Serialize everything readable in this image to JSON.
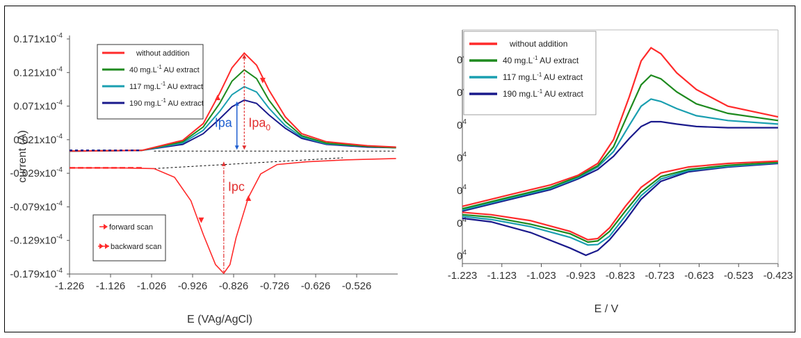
{
  "colors": {
    "without": "#ff2a2a",
    "au40": "#1e8a1e",
    "au117": "#1a9fb0",
    "au190": "#1a1a8c",
    "annot_red": "#e23030",
    "annot_blue": "#1f5fd0"
  },
  "chart_data": [
    {
      "type": "line",
      "ylabel": "current (A)",
      "xlabel": "E  (VAg/AgCl)",
      "xticks": [
        "-1.226",
        "-1.126",
        "-1.026",
        "-0.926",
        "-0.826",
        "-0.726",
        "-0.626",
        "-0.526"
      ],
      "yticks": [
        "0.171x10",
        "0.121x10",
        "0.071x10",
        "0.021x10",
        "-0.029x10",
        "-0.079x10",
        "-0.129x10",
        "-0.179x10"
      ],
      "ytick_exp": "-4",
      "xlim": [
        -1.226,
        -0.426
      ],
      "ylim": [
        -0.179,
        0.171
      ],
      "grid": false,
      "legend_position": "top-left",
      "series": [
        {
          "name": "without addition",
          "color_key": "without",
          "forward": [
            [
              -1.226,
              0.004
            ],
            [
              -1.05,
              0.005
            ],
            [
              -0.95,
              0.02
            ],
            [
              -0.9,
              0.045
            ],
            [
              -0.86,
              0.09
            ],
            [
              -0.83,
              0.128
            ],
            [
              -0.8,
              0.15
            ],
            [
              -0.77,
              0.132
            ],
            [
              -0.74,
              0.095
            ],
            [
              -0.7,
              0.055
            ],
            [
              -0.66,
              0.03
            ],
            [
              -0.6,
              0.018
            ],
            [
              -0.5,
              0.012
            ],
            [
              -0.43,
              0.01
            ]
          ],
          "backward": [
            [
              -0.43,
              -0.007
            ],
            [
              -0.55,
              -0.009
            ],
            [
              -0.65,
              -0.012
            ],
            [
              -0.72,
              -0.016
            ],
            [
              -0.76,
              -0.03
            ],
            [
              -0.79,
              -0.065
            ],
            [
              -0.82,
              -0.125
            ],
            [
              -0.835,
              -0.165
            ],
            [
              -0.85,
              -0.178
            ],
            [
              -0.87,
              -0.165
            ],
            [
              -0.9,
              -0.12
            ],
            [
              -0.93,
              -0.07
            ],
            [
              -0.97,
              -0.035
            ],
            [
              -1.02,
              -0.022
            ],
            [
              -1.1,
              -0.021
            ],
            [
              -1.226,
              -0.021
            ]
          ]
        },
        {
          "name": "40 mg.L-1 AU extract",
          "legend_text": "40 mg.L",
          "sup": "-1",
          "legend_suffix": " AU extract",
          "color_key": "au40",
          "forward": [
            [
              -1.226,
              0.004
            ],
            [
              -1.05,
              0.005
            ],
            [
              -0.95,
              0.018
            ],
            [
              -0.9,
              0.04
            ],
            [
              -0.86,
              0.075
            ],
            [
              -0.83,
              0.108
            ],
            [
              -0.8,
              0.125
            ],
            [
              -0.77,
              0.112
            ],
            [
              -0.74,
              0.08
            ],
            [
              -0.7,
              0.048
            ],
            [
              -0.66,
              0.027
            ],
            [
              -0.6,
              0.016
            ],
            [
              -0.5,
              0.011
            ],
            [
              -0.43,
              0.009
            ]
          ]
        },
        {
          "name": "117 mg.L-1 AU extract",
          "legend_text": "117 mg.L",
          "sup": "-1",
          "legend_suffix": " AU extract",
          "color_key": "au117",
          "forward": [
            [
              -1.226,
              0.004
            ],
            [
              -1.05,
              0.005
            ],
            [
              -0.95,
              0.016
            ],
            [
              -0.9,
              0.035
            ],
            [
              -0.86,
              0.063
            ],
            [
              -0.83,
              0.088
            ],
            [
              -0.8,
              0.1
            ],
            [
              -0.77,
              0.092
            ],
            [
              -0.74,
              0.068
            ],
            [
              -0.7,
              0.042
            ],
            [
              -0.66,
              0.025
            ],
            [
              -0.6,
              0.015
            ],
            [
              -0.5,
              0.011
            ],
            [
              -0.43,
              0.009
            ]
          ]
        },
        {
          "name": "190 mg.L-1 AU extract",
          "legend_text": "190 mg.L",
          "sup": "-1",
          "legend_suffix": " AU extract",
          "color_key": "au190",
          "forward": [
            [
              -1.226,
              0.004
            ],
            [
              -1.05,
              0.005
            ],
            [
              -0.95,
              0.014
            ],
            [
              -0.9,
              0.03
            ],
            [
              -0.86,
              0.052
            ],
            [
              -0.83,
              0.07
            ],
            [
              -0.8,
              0.08
            ],
            [
              -0.77,
              0.075
            ],
            [
              -0.74,
              0.058
            ],
            [
              -0.7,
              0.038
            ],
            [
              -0.66,
              0.023
            ],
            [
              -0.6,
              0.014
            ],
            [
              -0.5,
              0.01
            ],
            [
              -0.43,
              0.009
            ]
          ]
        }
      ],
      "annotations": {
        "ipa": "Ipa",
        "ipa0": "Ipa",
        "ipa0_sub": "0",
        "ipc": "Ipc",
        "forward_scan": "forward scan",
        "backward_scan": "backward scan"
      }
    },
    {
      "type": "line",
      "xlabel": "E / V",
      "xticks": [
        "-1.223",
        "-1.123",
        "-1.023",
        "-0.923",
        "-0.823",
        "-0.723",
        "-0.623",
        "-0.523",
        "-0.423"
      ],
      "ytick_label": "0",
      "ytick_exp": "4",
      "ytick_count": 7,
      "xlim": [
        -1.223,
        -0.423
      ],
      "ylim": [
        -0.36,
        0.62
      ],
      "grid": false,
      "legend_position": "top-left",
      "series": [
        {
          "name": "without addition",
          "color_key": "without",
          "forward": [
            [
              -1.223,
              -0.12
            ],
            [
              -1.1,
              -0.07
            ],
            [
              -1.0,
              -0.03
            ],
            [
              -0.93,
              0.01
            ],
            [
              -0.88,
              0.06
            ],
            [
              -0.84,
              0.16
            ],
            [
              -0.8,
              0.34
            ],
            [
              -0.77,
              0.49
            ],
            [
              -0.745,
              0.545
            ],
            [
              -0.72,
              0.52
            ],
            [
              -0.68,
              0.44
            ],
            [
              -0.63,
              0.37
            ],
            [
              -0.55,
              0.3
            ],
            [
              -0.423,
              0.255
            ]
          ],
          "backward": [
            [
              -0.423,
              0.07
            ],
            [
              -0.55,
              0.06
            ],
            [
              -0.65,
              0.045
            ],
            [
              -0.72,
              0.02
            ],
            [
              -0.77,
              -0.04
            ],
            [
              -0.81,
              -0.12
            ],
            [
              -0.85,
              -0.21
            ],
            [
              -0.88,
              -0.255
            ],
            [
              -0.905,
              -0.26
            ],
            [
              -0.95,
              -0.225
            ],
            [
              -1.05,
              -0.18
            ],
            [
              -1.15,
              -0.155
            ],
            [
              -1.223,
              -0.145
            ]
          ]
        },
        {
          "name": "40 mg.L-1 AU extract",
          "legend_text": "40 mg.L",
          "sup": "-1",
          "legend_suffix": " AU extract",
          "color_key": "au40",
          "forward": [
            [
              -1.223,
              -0.13
            ],
            [
              -1.1,
              -0.08
            ],
            [
              -1.0,
              -0.04
            ],
            [
              -0.93,
              0.005
            ],
            [
              -0.88,
              0.05
            ],
            [
              -0.84,
              0.13
            ],
            [
              -0.8,
              0.28
            ],
            [
              -0.77,
              0.39
            ],
            [
              -0.745,
              0.43
            ],
            [
              -0.72,
              0.415
            ],
            [
              -0.68,
              0.36
            ],
            [
              -0.63,
              0.31
            ],
            [
              -0.55,
              0.27
            ],
            [
              -0.423,
              0.24
            ]
          ],
          "backward": [
            [
              -0.423,
              0.065
            ],
            [
              -0.55,
              0.052
            ],
            [
              -0.65,
              0.035
            ],
            [
              -0.72,
              0.005
            ],
            [
              -0.77,
              -0.06
            ],
            [
              -0.81,
              -0.14
            ],
            [
              -0.85,
              -0.225
            ],
            [
              -0.88,
              -0.265
            ],
            [
              -0.905,
              -0.27
            ],
            [
              -0.95,
              -0.235
            ],
            [
              -1.05,
              -0.195
            ],
            [
              -1.15,
              -0.165
            ],
            [
              -1.223,
              -0.155
            ]
          ]
        },
        {
          "name": "117 mg.L-1 AU extract",
          "legend_text": "117 mg.L",
          "sup": "-1",
          "legend_suffix": " AU extract",
          "color_key": "au117",
          "forward": [
            [
              -1.223,
              -0.135
            ],
            [
              -1.1,
              -0.085
            ],
            [
              -1.0,
              -0.045
            ],
            [
              -0.93,
              0.0
            ],
            [
              -0.88,
              0.045
            ],
            [
              -0.84,
              0.11
            ],
            [
              -0.8,
              0.22
            ],
            [
              -0.77,
              0.3
            ],
            [
              -0.745,
              0.33
            ],
            [
              -0.72,
              0.32
            ],
            [
              -0.68,
              0.29
            ],
            [
              -0.63,
              0.26
            ],
            [
              -0.55,
              0.24
            ],
            [
              -0.423,
              0.225
            ]
          ],
          "backward": [
            [
              -0.423,
              0.063
            ],
            [
              -0.55,
              0.048
            ],
            [
              -0.65,
              0.03
            ],
            [
              -0.72,
              -0.005
            ],
            [
              -0.77,
              -0.075
            ],
            [
              -0.81,
              -0.16
            ],
            [
              -0.85,
              -0.245
            ],
            [
              -0.88,
              -0.28
            ],
            [
              -0.905,
              -0.282
            ],
            [
              -0.95,
              -0.25
            ],
            [
              -1.05,
              -0.205
            ],
            [
              -1.15,
              -0.175
            ],
            [
              -1.223,
              -0.162
            ]
          ]
        },
        {
          "name": "190 mg.L-1 AU extract",
          "legend_text": "190 mg.L",
          "sup": "-1",
          "legend_suffix": " AU extract",
          "color_key": "au190",
          "forward": [
            [
              -1.223,
              -0.14
            ],
            [
              -1.1,
              -0.09
            ],
            [
              -1.0,
              -0.05
            ],
            [
              -0.93,
              -0.005
            ],
            [
              -0.88,
              0.035
            ],
            [
              -0.84,
              0.09
            ],
            [
              -0.8,
              0.165
            ],
            [
              -0.77,
              0.215
            ],
            [
              -0.745,
              0.235
            ],
            [
              -0.72,
              0.235
            ],
            [
              -0.68,
              0.225
            ],
            [
              -0.63,
              0.215
            ],
            [
              -0.55,
              0.21
            ],
            [
              -0.423,
              0.21
            ]
          ],
          "backward": [
            [
              -0.423,
              0.06
            ],
            [
              -0.55,
              0.045
            ],
            [
              -0.65,
              0.025
            ],
            [
              -0.72,
              -0.015
            ],
            [
              -0.77,
              -0.09
            ],
            [
              -0.81,
              -0.18
            ],
            [
              -0.85,
              -0.26
            ],
            [
              -0.88,
              -0.305
            ],
            [
              -0.91,
              -0.325
            ],
            [
              -0.95,
              -0.295
            ],
            [
              -1.05,
              -0.23
            ],
            [
              -1.15,
              -0.185
            ],
            [
              -1.223,
              -0.17
            ]
          ]
        }
      ]
    }
  ]
}
